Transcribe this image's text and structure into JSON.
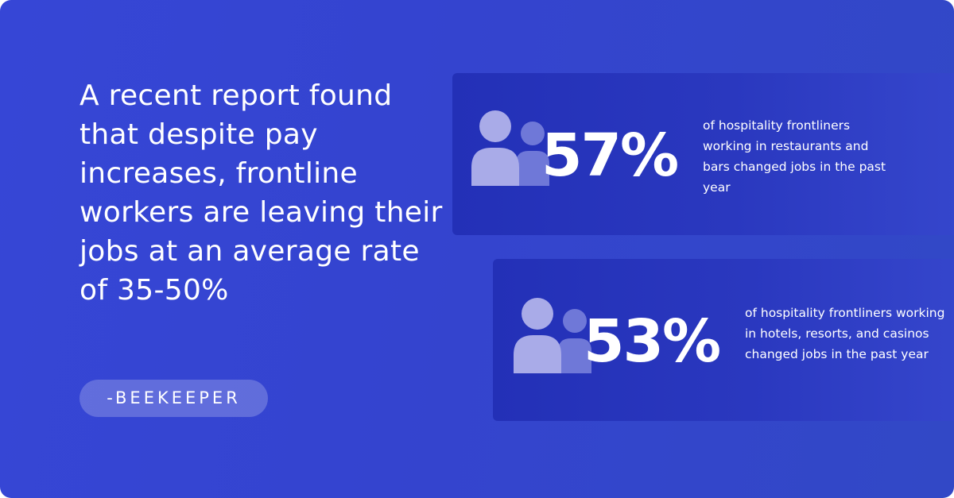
{
  "quote": {
    "text": "A recent report found that despite pay increases, frontline workers are leaving their jobs at an average rate of 35-50%"
  },
  "source": {
    "label": "-BEEKEEPER"
  },
  "stats": [
    {
      "icon": "people-icon",
      "value": "57%",
      "description": "of hospitality frontliners working in restaurants and bars changed jobs in the past year"
    },
    {
      "icon": "people-icon",
      "value": "53%",
      "description": "of hospitality frontliners working in hotels, resorts, and casinos changed jobs in the past year"
    }
  ],
  "colors": {
    "background": "#3444cf",
    "card": "#2530b8",
    "icon_front": "#a9abe8",
    "icon_back": "#6f78d8",
    "text": "#ffffff"
  }
}
